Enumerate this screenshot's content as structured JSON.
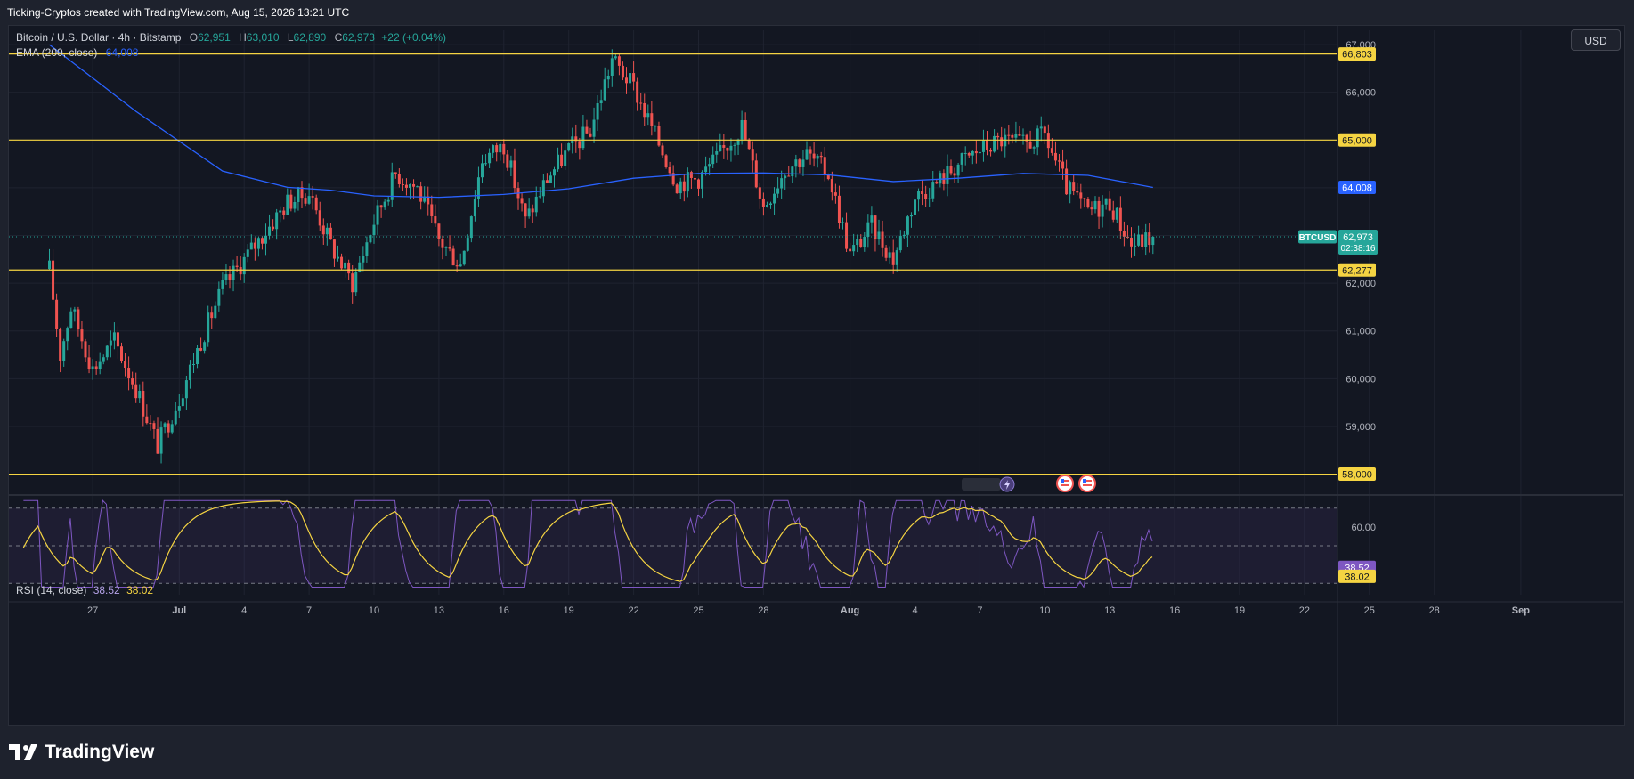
{
  "header": {
    "attribution": "Ticking-Cryptos created with TradingView.com, Aug 15, 2026 13:21 UTC"
  },
  "legend": {
    "symbol_name": "Bitcoin / U.S. Dollar · 4h · Bitstamp",
    "open_key": "O",
    "open": "62,951",
    "high_key": "H",
    "high": "63,010",
    "low_key": "L",
    "low": "62,890",
    "close_key": "C",
    "close": "62,973",
    "change": "+22 (+0.04%)",
    "ema_label": "EMA (200, close)",
    "ema_value": "64,008"
  },
  "rsi_legend": {
    "label": "RSI (14, close)",
    "rsi_value": "38.52",
    "ma_value": "38.02"
  },
  "currency_button": "USD",
  "footer": {
    "brand": "TradingView"
  },
  "colors": {
    "background": "#131722",
    "up": "#26a69a",
    "down": "#ef5350",
    "ema": "#2962ff",
    "levels": "#f5d442",
    "rsi": "#7e57c2",
    "rsi_ma": "#f5d442",
    "grid": "#1f2330"
  },
  "chart_data": {
    "type": "candlestick",
    "symbol": "BTCUSD",
    "timeframe": "4h",
    "ylim": [
      57600,
      67300
    ],
    "y_ticks": [
      "59,000",
      "60,000",
      "61,000",
      "62,000",
      "66,000",
      "67,000"
    ],
    "x_ticks": [
      "27",
      "Jul",
      "4",
      "7",
      "10",
      "13",
      "16",
      "19",
      "22",
      "25",
      "28",
      "Aug",
      "4",
      "7",
      "10",
      "13",
      "16",
      "19",
      "22",
      "25",
      "28",
      "Sep"
    ],
    "x_range": [
      "2026-06-25",
      "2026-09-01"
    ],
    "horizontal_levels": [
      {
        "value": 66803,
        "label": "66,803"
      },
      {
        "value": 65000,
        "label": "65,000"
      },
      {
        "value": 62277,
        "label": "62,277"
      },
      {
        "value": 58000,
        "label": "58,000"
      }
    ],
    "price_labels": {
      "ema": "64,008",
      "symbol_tag": "BTCUSD",
      "last_price": "62,973",
      "countdown": "02:38:16"
    },
    "last_price": 62973,
    "ema_points": [
      [
        "2026-06-25",
        67000
      ],
      [
        "2026-06-29",
        65600
      ],
      [
        "2026-07-03",
        64350
      ],
      [
        "2026-07-06",
        64010
      ],
      [
        "2026-07-08",
        63950
      ],
      [
        "2026-07-10",
        63830
      ],
      [
        "2026-07-13",
        63800
      ],
      [
        "2026-07-16",
        63860
      ],
      [
        "2026-07-19",
        63980
      ],
      [
        "2026-07-22",
        64200
      ],
      [
        "2026-07-25",
        64300
      ],
      [
        "2026-07-28",
        64310
      ],
      [
        "2026-07-31",
        64270
      ],
      [
        "2026-08-03",
        64130
      ],
      [
        "2026-08-06",
        64200
      ],
      [
        "2026-08-09",
        64300
      ],
      [
        "2026-08-12",
        64260
      ],
      [
        "2026-08-15",
        64008
      ]
    ],
    "price_path": [
      [
        "2026-06-25",
        62300
      ],
      [
        "2026-06-25.5",
        60500
      ],
      [
        "2026-06-26",
        61500
      ],
      [
        "2026-06-27",
        60200
      ],
      [
        "2026-06-28",
        60800
      ],
      [
        "2026-06-29",
        59800
      ],
      [
        "2026-06-30",
        58600
      ],
      [
        "2026-07-01",
        59600
      ],
      [
        "2026-07-02",
        60800
      ],
      [
        "2026-07-03",
        61900
      ],
      [
        "2026-07-04",
        62500
      ],
      [
        "2026-07-05",
        63100
      ],
      [
        "2026-07-06",
        63700
      ],
      [
        "2026-07-07",
        63900
      ],
      [
        "2026-07-08",
        62800
      ],
      [
        "2026-07-09",
        62000
      ],
      [
        "2026-07-10",
        63300
      ],
      [
        "2026-07-11",
        64300
      ],
      [
        "2026-07-12",
        64000
      ],
      [
        "2026-07-13",
        62900
      ],
      [
        "2026-07-14",
        62400
      ],
      [
        "2026-07-15",
        64600
      ],
      [
        "2026-07-16",
        64900
      ],
      [
        "2026-07-17",
        63300
      ],
      [
        "2026-07-18",
        64200
      ],
      [
        "2026-07-19",
        64800
      ],
      [
        "2026-07-20",
        65200
      ],
      [
        "2026-07-21",
        66700
      ],
      [
        "2026-07-22",
        66100
      ],
      [
        "2026-07-23",
        65100
      ],
      [
        "2026-07-24",
        64100
      ],
      [
        "2026-07-25",
        64200
      ],
      [
        "2026-07-26",
        64700
      ],
      [
        "2026-07-27",
        65300
      ],
      [
        "2026-07-28",
        63600
      ],
      [
        "2026-07-29",
        64400
      ],
      [
        "2026-07-30",
        64700
      ],
      [
        "2026-07-31",
        64300
      ],
      [
        "2026-08-01",
        62600
      ],
      [
        "2026-08-02",
        63200
      ],
      [
        "2026-08-03",
        62500
      ],
      [
        "2026-08-04",
        63800
      ],
      [
        "2026-08-05",
        64100
      ],
      [
        "2026-08-06",
        64500
      ],
      [
        "2026-08-07",
        64800
      ],
      [
        "2026-08-08",
        65000
      ],
      [
        "2026-08-09",
        64900
      ],
      [
        "2026-08-10",
        65100
      ],
      [
        "2026-08-11",
        64000
      ],
      [
        "2026-08-12",
        63500
      ],
      [
        "2026-08-13",
        63700
      ],
      [
        "2026-08-14",
        62800
      ],
      [
        "2026-08-15",
        62973
      ]
    ],
    "rsi": {
      "ylim": [
        24,
        76
      ],
      "y_ticks": [
        "60.00"
      ],
      "band": [
        30,
        70
      ],
      "mid": 50,
      "value_labels": {
        "rsi": "38.52",
        "ma": "38.02"
      },
      "rsi_value": 38.52,
      "ma_value": 38.02
    }
  }
}
